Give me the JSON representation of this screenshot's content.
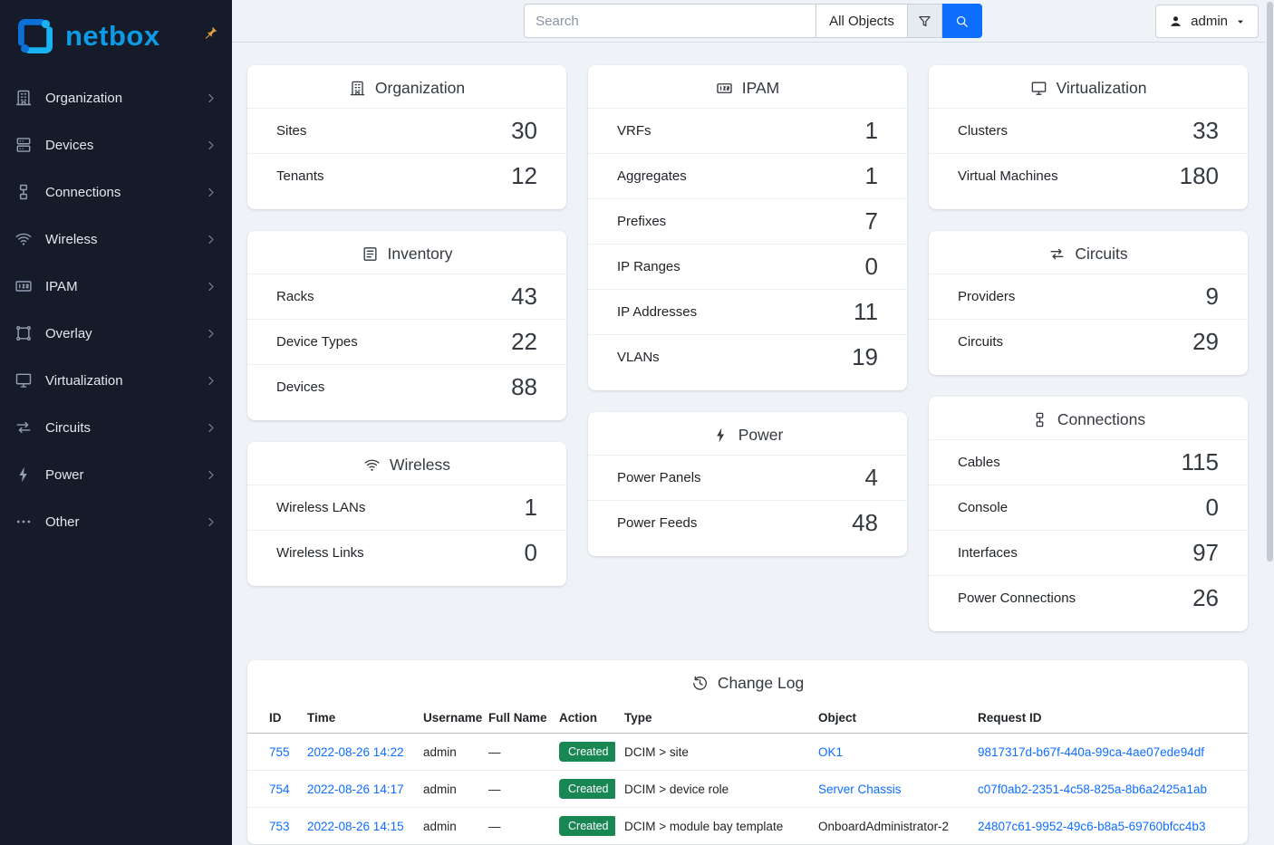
{
  "colors": {
    "accent": "#0d6efd",
    "link": "#0d6efd",
    "badge_created": "#198754",
    "sidebar_bg": "#151b28",
    "brand_blue": "#0d9be5"
  },
  "sidebar": {
    "brand": "netbox",
    "items": [
      {
        "label": "Organization",
        "icon": "building-icon"
      },
      {
        "label": "Devices",
        "icon": "server-icon"
      },
      {
        "label": "Connections",
        "icon": "cable-icon"
      },
      {
        "label": "Wireless",
        "icon": "wifi-icon"
      },
      {
        "label": "IPAM",
        "icon": "counter-icon"
      },
      {
        "label": "Overlay",
        "icon": "vector-icon"
      },
      {
        "label": "Virtualization",
        "icon": "monitor-icon"
      },
      {
        "label": "Circuits",
        "icon": "transfer-icon"
      },
      {
        "label": "Power",
        "icon": "flash-icon"
      },
      {
        "label": "Other",
        "icon": "dots-icon"
      }
    ]
  },
  "topbar": {
    "search_placeholder": "Search",
    "scope_label": "All Objects",
    "user_label": "admin"
  },
  "dashboard": {
    "columns": [
      {
        "cards": [
          {
            "title": "Organization",
            "icon": "building-icon",
            "rows": [
              {
                "label": "Sites",
                "value": "30"
              },
              {
                "label": "Tenants",
                "value": "12"
              }
            ]
          },
          {
            "title": "Inventory",
            "icon": "list-icon",
            "rows": [
              {
                "label": "Racks",
                "value": "43"
              },
              {
                "label": "Device Types",
                "value": "22"
              },
              {
                "label": "Devices",
                "value": "88"
              }
            ]
          },
          {
            "title": "Wireless",
            "icon": "wifi-icon",
            "rows": [
              {
                "label": "Wireless LANs",
                "value": "1"
              },
              {
                "label": "Wireless Links",
                "value": "0"
              }
            ]
          }
        ]
      },
      {
        "cards": [
          {
            "title": "IPAM",
            "icon": "counter-icon",
            "rows": [
              {
                "label": "VRFs",
                "value": "1"
              },
              {
                "label": "Aggregates",
                "value": "1"
              },
              {
                "label": "Prefixes",
                "value": "7"
              },
              {
                "label": "IP Ranges",
                "value": "0"
              },
              {
                "label": "IP Addresses",
                "value": "11"
              },
              {
                "label": "VLANs",
                "value": "19"
              }
            ]
          },
          {
            "title": "Power",
            "icon": "flash-icon",
            "rows": [
              {
                "label": "Power Panels",
                "value": "4"
              },
              {
                "label": "Power Feeds",
                "value": "48"
              }
            ]
          }
        ]
      },
      {
        "cards": [
          {
            "title": "Virtualization",
            "icon": "monitor-icon",
            "rows": [
              {
                "label": "Clusters",
                "value": "33"
              },
              {
                "label": "Virtual Machines",
                "value": "180"
              }
            ]
          },
          {
            "title": "Circuits",
            "icon": "transfer-icon",
            "rows": [
              {
                "label": "Providers",
                "value": "9"
              },
              {
                "label": "Circuits",
                "value": "29"
              }
            ]
          },
          {
            "title": "Connections",
            "icon": "cable-icon",
            "rows": [
              {
                "label": "Cables",
                "value": "115"
              },
              {
                "label": "Console",
                "value": "0"
              },
              {
                "label": "Interfaces",
                "value": "97"
              },
              {
                "label": "Power Connections",
                "value": "26"
              }
            ]
          }
        ]
      }
    ]
  },
  "changelog": {
    "title": "Change Log",
    "icon": "history-icon",
    "columns": [
      "ID",
      "Time",
      "Username",
      "Full Name",
      "Action",
      "Type",
      "Object",
      "Request ID"
    ],
    "rows": [
      {
        "id": "755",
        "time": "2022-08-26 14:22",
        "username": "admin",
        "full_name": "—",
        "action": "Created",
        "type": "DCIM > site",
        "object": "OK1",
        "object_is_link": true,
        "request_id": "9817317d-b67f-440a-99ca-4ae07ede94df"
      },
      {
        "id": "754",
        "time": "2022-08-26 14:17",
        "username": "admin",
        "full_name": "—",
        "action": "Created",
        "type": "DCIM > device role",
        "object": "Server Chassis",
        "object_is_link": true,
        "request_id": "c07f0ab2-2351-4c58-825a-8b6a2425a1ab"
      },
      {
        "id": "753",
        "time": "2022-08-26 14:15",
        "username": "admin",
        "full_name": "—",
        "action": "Created",
        "type": "DCIM > module bay template",
        "object": "OnboardAdministrator-2",
        "object_is_link": false,
        "request_id": "24807c61-9952-49c6-b8a5-69760bfcc4b3"
      }
    ]
  }
}
